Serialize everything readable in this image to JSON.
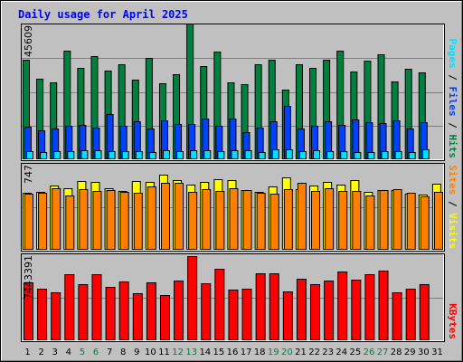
{
  "title": "Daily usage for April 2025",
  "colors": {
    "background": "#c0c0c0",
    "panel": "#c0c0c0",
    "title": "#0000ff",
    "hits": "#008040",
    "files": "#0040ff",
    "pages": "#00e0ff",
    "visits": "#ffff00",
    "sites": "#ff8000",
    "kbytes": "#ff0000",
    "weekend_label": "#008040",
    "day_label": "#000000",
    "bar_outline": "#000000"
  },
  "side_labels": {
    "pages": "Pages",
    "files": "Files",
    "hits": "Hits",
    "sites": "Sites",
    "visits": "Visits",
    "kbytes": "KBytes",
    "sep": " / "
  },
  "chart_data": {
    "type": "bar",
    "title": "Daily usage for April 2025",
    "categories": [
      "1",
      "2",
      "3",
      "4",
      "5",
      "6",
      "7",
      "8",
      "9",
      "10",
      "11",
      "12",
      "13",
      "14",
      "15",
      "16",
      "17",
      "18",
      "19",
      "20",
      "21",
      "22",
      "23",
      "24",
      "25",
      "26",
      "27",
      "28",
      "29",
      "30",
      "31"
    ],
    "weekend_days": [
      "5",
      "6",
      "12",
      "13",
      "19",
      "20",
      "26",
      "27"
    ],
    "panels": [
      {
        "ymax_label": "45609",
        "ymax": 45609,
        "series": [
          {
            "name": "Hits",
            "values": [
              33900,
              27300,
              26200,
              36800,
              31000,
              35000,
              30100,
              32200,
              26900,
              34300,
              25900,
              28700,
              46100,
              31500,
              36500,
              26100,
              25500,
              32400,
              33900,
              23700,
              32400,
              31100,
              33900,
              36800,
              29700,
              33600,
              35600,
              26500,
              30600,
              29400,
              0
            ]
          },
          {
            "name": "Files",
            "values": [
              10800,
              9700,
              10100,
              11300,
              11400,
              10700,
              15300,
              11100,
              12800,
              10300,
              13000,
              11900,
              11900,
              13800,
              11300,
              13600,
              9000,
              10600,
              12600,
              17900,
              10100,
              11100,
              12700,
              11500,
              13300,
              12300,
              12000,
              13000,
              10200,
              12300,
              0
            ]
          },
          {
            "name": "Pages",
            "values": [
              2600,
              2300,
              2400,
              2500,
              2900,
              2700,
              2500,
              2500,
              2600,
              2300,
              2800,
              2600,
              2800,
              2900,
              2500,
              2800,
              2700,
              2300,
              3200,
              3000,
              2400,
              2700,
              2400,
              2400,
              2200,
              2300,
              2500,
              2400,
              2200,
              3200,
              0
            ]
          }
        ]
      },
      {
        "ymax_label": "747",
        "ymax": 747,
        "series": [
          {
            "name": "Visits",
            "values": [
              500,
              507,
              561,
              538,
              604,
              591,
              537,
              515,
              601,
              592,
              658,
              607,
              574,
              594,
              615,
              614,
              526,
              507,
              552,
              632,
              533,
              563,
              597,
              571,
              609,
              510,
              525,
              524,
              486,
              478,
              580
            ]
          },
          {
            "name": "Sites",
            "values": [
              489,
              501,
              541,
              477,
              531,
              518,
              520,
              510,
              496,
              555,
              584,
              585,
              510,
              530,
              511,
              537,
              522,
              499,
              486,
              527,
              585,
              517,
              541,
              514,
              512,
              475,
              522,
              532,
              501,
              465,
              510
            ]
          }
        ]
      },
      {
        "ymax_label": "7443391",
        "ymax": 7443391,
        "series": [
          {
            "name": "KBytes",
            "values": [
              5030000,
              4480000,
              4180000,
              5800000,
              4890000,
              5750000,
              4640000,
              5130000,
              4100000,
              5080000,
              3900000,
              5190000,
              7390000,
              4980000,
              6270000,
              4410000,
              4480000,
              5840000,
              5880000,
              4250000,
              5390000,
              4900000,
              5170000,
              6000000,
              5260000,
              5800000,
              6090000,
              4170000,
              4520000,
              4880000,
              0
            ]
          }
        ]
      }
    ]
  }
}
